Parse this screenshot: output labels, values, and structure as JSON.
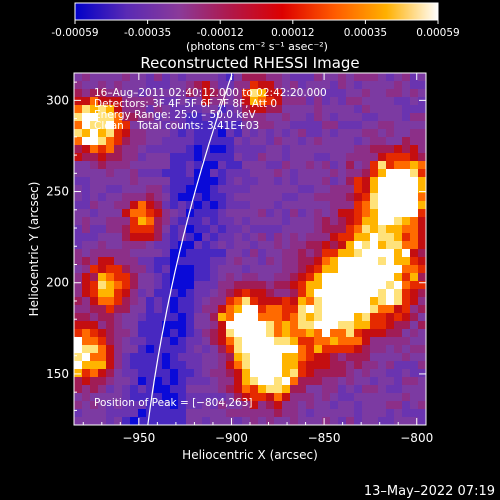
{
  "colorbar": {
    "ticks": [
      "-0.00059",
      "-0.00035",
      "-0.00012",
      "0.00012",
      "0.00035",
      "0.00059"
    ],
    "units_label": "(photons cm⁻² s⁻¹ asec⁻²)",
    "colors": [
      "#0000c8",
      "#5a2ab4",
      "#8a3a9a",
      "#b0184a",
      "#dd0000",
      "#ff5a00",
      "#ffb000",
      "#ffffff"
    ]
  },
  "chart_data": {
    "type": "heatmap",
    "title": "Reconstructed RHESSI Image",
    "xlabel": "Heliocentric X (arcsec)",
    "ylabel": "Heliocentric Y (arcsec)",
    "xlim": [
      -985,
      -795
    ],
    "ylim": [
      122,
      315
    ],
    "xticks": [
      -950,
      -900,
      -850,
      -800
    ],
    "yticks": [
      150,
      200,
      250,
      300
    ],
    "xtick_labels": [
      "−950",
      "−900",
      "−850",
      "−800"
    ],
    "ytick_labels": [
      "150",
      "200",
      "250",
      "300"
    ],
    "info_lines": [
      "16–Aug–2011 02:40:12.000 to 02:42:20.000",
      "Detectors: 3F 4F 5F 6F 7F 8F, Att 0",
      "Energy Range: 25.0 – 50.0 keV",
      "Clean    Total counts: 3.41E+03"
    ],
    "peak_label": "Position of Peak = [−804,263]",
    "peak": [
      -804,
      263
    ]
  },
  "footer": {
    "date": "13–May–2022 07:19"
  }
}
